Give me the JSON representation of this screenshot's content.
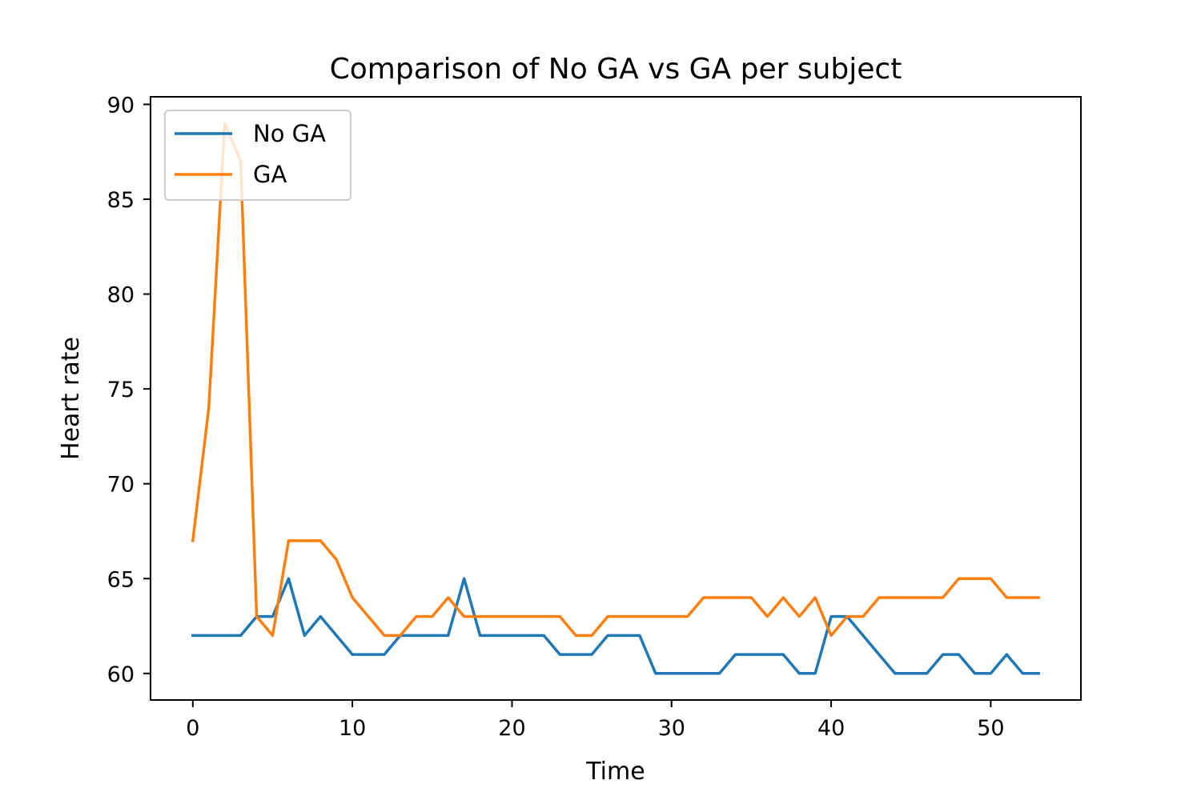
{
  "chart_data": {
    "type": "line",
    "title": "Comparison of No GA vs GA per subject",
    "xlabel": "Time",
    "ylabel": "Heart rate",
    "xlim": [
      -2.65,
      55.65
    ],
    "ylim": [
      58.6,
      90.4
    ],
    "xticks": [
      0,
      10,
      20,
      30,
      40,
      50
    ],
    "yticks": [
      60,
      65,
      70,
      75,
      80,
      85,
      90
    ],
    "grid": false,
    "legend_position": "top-left",
    "x": [
      0,
      1,
      2,
      3,
      4,
      5,
      6,
      7,
      8,
      9,
      10,
      11,
      12,
      13,
      14,
      15,
      16,
      17,
      18,
      19,
      20,
      21,
      22,
      23,
      24,
      25,
      26,
      27,
      28,
      29,
      30,
      31,
      32,
      33,
      34,
      35,
      36,
      37,
      38,
      39,
      40,
      41,
      42,
      43,
      44,
      45,
      46,
      47,
      48,
      49,
      50,
      51,
      52,
      53
    ],
    "series": [
      {
        "name": "No GA",
        "color": "#1f77b4",
        "values": [
          62,
          62,
          62,
          62,
          63,
          63,
          65,
          62,
          63,
          62,
          61,
          61,
          61,
          62,
          62,
          62,
          62,
          65,
          62,
          62,
          62,
          62,
          62,
          61,
          61,
          61,
          62,
          62,
          62,
          60,
          60,
          60,
          60,
          60,
          61,
          61,
          61,
          61,
          60,
          60,
          63,
          63,
          62,
          61,
          60,
          60,
          60,
          61,
          61,
          60,
          60,
          61,
          60,
          60
        ]
      },
      {
        "name": "GA",
        "color": "#ff7f0e",
        "values": [
          67,
          74,
          89,
          87,
          63,
          62,
          67,
          67,
          67,
          66,
          64,
          63,
          62,
          62,
          63,
          63,
          64,
          63,
          63,
          63,
          63,
          63,
          63,
          63,
          62,
          62,
          63,
          63,
          63,
          63,
          63,
          63,
          64,
          64,
          64,
          64,
          63,
          64,
          63,
          64,
          62,
          63,
          63,
          64,
          64,
          64,
          64,
          64,
          65,
          65,
          65,
          64,
          64,
          64
        ]
      }
    ]
  }
}
